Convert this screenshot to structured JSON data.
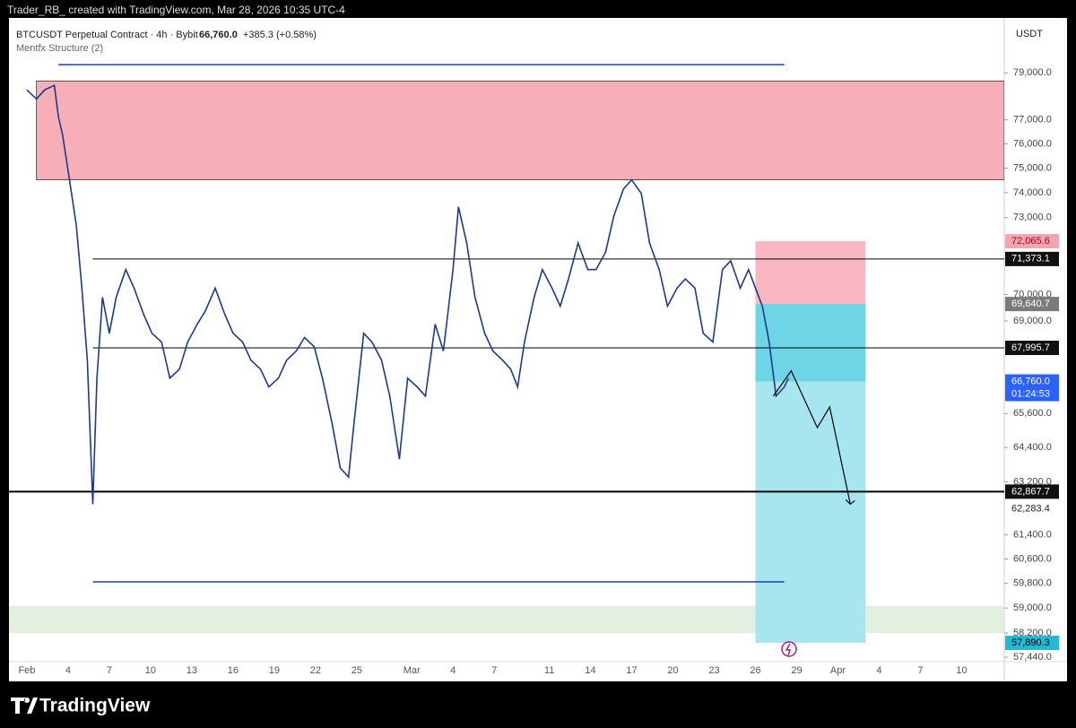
{
  "header": {
    "text": "Trader_RB_ created with TradingView.com, Mar 28, 2026 10:35 UTC-4"
  },
  "footer": {
    "logo_text": "TradingView"
  },
  "chart_data": {
    "type": "line",
    "symbol": "BTCUSDT Perpetual Contract · 4h · Bybit",
    "change_text": "+385.3 (+0.58%)",
    "indicator": "Mentfx Structure (2)",
    "currency": "USDT",
    "log_scale": true,
    "grid": false,
    "color": "#1e3a8a",
    "x": [
      1.0,
      1.7,
      2.3,
      3.0,
      3.3,
      3.6,
      4.1,
      4.6,
      5.0,
      5.4,
      5.8,
      6.1,
      6.5,
      7.0,
      7.5,
      8.2,
      8.8,
      9.5,
      10.1,
      10.8,
      11.4,
      12.1,
      12.7,
      13.4,
      14.0,
      14.7,
      15.4,
      16.0,
      16.7,
      17.3,
      18.0,
      18.6,
      19.3,
      19.9,
      20.6,
      21.2,
      21.9,
      22.5,
      23.2,
      23.8,
      24.4,
      24.8,
      25.5,
      26.1,
      26.8,
      27.4,
      28.1,
      28.7,
      29.4,
      30.0,
      30.7,
      31.3,
      32.0,
      32.4,
      33.0,
      33.6,
      34.3,
      34.9,
      35.6,
      36.2,
      36.7,
      37.2,
      37.9,
      38.5,
      39.2,
      39.8,
      40.4,
      41.1,
      41.8,
      42.4,
      43.1,
      43.7,
      44.4,
      45.0,
      45.7,
      46.3,
      47.0,
      47.6,
      48.3,
      48.9,
      49.6,
      50.2,
      50.9,
      51.6,
      52.2,
      52.9,
      53.5,
      54.0,
      54.5,
      55.0,
      55.5,
      56.1,
      56.4
    ],
    "values": [
      78270,
      77880,
      78270,
      78460,
      77120,
      76370,
      74520,
      72700,
      70250,
      67540,
      62440,
      66880,
      69900,
      68540,
      69900,
      70960,
      70250,
      69250,
      68540,
      68210,
      66880,
      67210,
      68210,
      68880,
      69390,
      70250,
      69250,
      68540,
      68210,
      67540,
      67210,
      66560,
      66880,
      67540,
      67880,
      68380,
      68040,
      66880,
      65260,
      63680,
      63370,
      65260,
      68540,
      68210,
      67540,
      66230,
      63990,
      66880,
      66560,
      66230,
      68880,
      67880,
      70960,
      73430,
      72000,
      69900,
      68540,
      67880,
      67540,
      67210,
      66560,
      68210,
      69900,
      70960,
      70250,
      69560,
      70600,
      72000,
      70960,
      70960,
      71640,
      73070,
      74150,
      74520,
      73970,
      72000,
      70960,
      69560,
      70250,
      70600,
      70250,
      68540,
      68210,
      70960,
      71300,
      70250,
      70960,
      70250,
      69560,
      68210,
      66230,
      66560,
      66880
    ],
    "xlim": [
      -0.3,
      72.1
    ],
    "xticks": [
      {
        "value": 1,
        "label": "Feb"
      },
      4,
      7,
      10,
      13,
      16,
      19,
      22,
      25,
      {
        "value": 29,
        "label": "Mar"
      },
      {
        "value": 32,
        "label": "4"
      },
      {
        "value": 35,
        "label": "7"
      },
      {
        "value": 39,
        "label": "11"
      },
      {
        "value": 42,
        "label": "14"
      },
      {
        "value": 45,
        "label": "17"
      },
      {
        "value": 48,
        "label": "20"
      },
      {
        "value": 51,
        "label": "23"
      },
      {
        "value": 54,
        "label": "26"
      },
      {
        "value": 57,
        "label": "29"
      },
      {
        "value": 60,
        "label": "Apr"
      },
      {
        "value": 63,
        "label": "4"
      },
      {
        "value": 66,
        "label": "7"
      },
      {
        "value": 69,
        "label": "10"
      }
    ],
    "ylim": [
      57300,
      81400
    ],
    "yticks": [
      {
        "value": 79000,
        "label": "79,000.0"
      },
      {
        "value": 77000,
        "label": "77,000.0"
      },
      {
        "value": 76000,
        "label": "76,000.0"
      },
      {
        "value": 75000,
        "label": "75,000.0"
      },
      {
        "value": 74000,
        "label": "74,000.0"
      },
      {
        "value": 73000,
        "label": "73,000.0"
      },
      {
        "value": 70000,
        "label": "70,000.0"
      },
      {
        "value": 69000,
        "label": "69,000.0"
      },
      {
        "value": 65600,
        "label": "65,600.0"
      },
      {
        "value": 64400,
        "label": "64,400.0"
      },
      {
        "value": 63200,
        "label": "63,200.0"
      },
      {
        "value": 61400,
        "label": "61,400.0"
      },
      {
        "value": 60600,
        "label": "60,600.0"
      },
      {
        "value": 59800,
        "label": "59,800.0"
      },
      {
        "value": 59000,
        "label": "59,000.0"
      },
      {
        "value": 58200,
        "label": "58,200.0"
      },
      {
        "value": 57440,
        "label": "57,440.0"
      }
    ],
    "zones": [
      {
        "top": 78650,
        "bottom": 74520,
        "x_start": 1.7,
        "color": "#f8aeb8"
      },
      {
        "top": 59070,
        "bottom": 58200,
        "color": "#e3f0df"
      }
    ],
    "structure": [
      {
        "value": 79350,
        "x_start": 3.3,
        "x_end": 56.1,
        "color": "#1e40af"
      },
      {
        "value": 59850,
        "x_start": 5.8,
        "x_end": 56.1,
        "color": "#1e40af"
      }
    ],
    "levels": [
      {
        "value": 71373.1,
        "label": "71,373.1",
        "x_start": 5.8,
        "width": 1
      },
      {
        "value": 67995.7,
        "label": "67,995.7",
        "x_start": 5.8,
        "width": 1
      },
      {
        "value": 62867.7,
        "label": "62,867.7",
        "width": 2
      }
    ],
    "position": {
      "x_start": 54.0,
      "x_end": 62.0,
      "stop": 72065.6,
      "stop_label": "72,065.6",
      "entry": 69640.7,
      "entry_label": "69,640.7",
      "target": 57890.3,
      "target_label": "57,890.3"
    },
    "current_price": {
      "value": 66760,
      "label": "66,760.0",
      "countdown": "01:24:53"
    },
    "plain_labels": [
      {
        "value": 62283.4,
        "label": "62,283.4"
      }
    ],
    "projection": {
      "x": [
        55.3,
        56.6,
        58.5,
        59.4,
        60.9
      ],
      "y": [
        66230,
        67150,
        65100,
        65840,
        62440
      ]
    }
  }
}
